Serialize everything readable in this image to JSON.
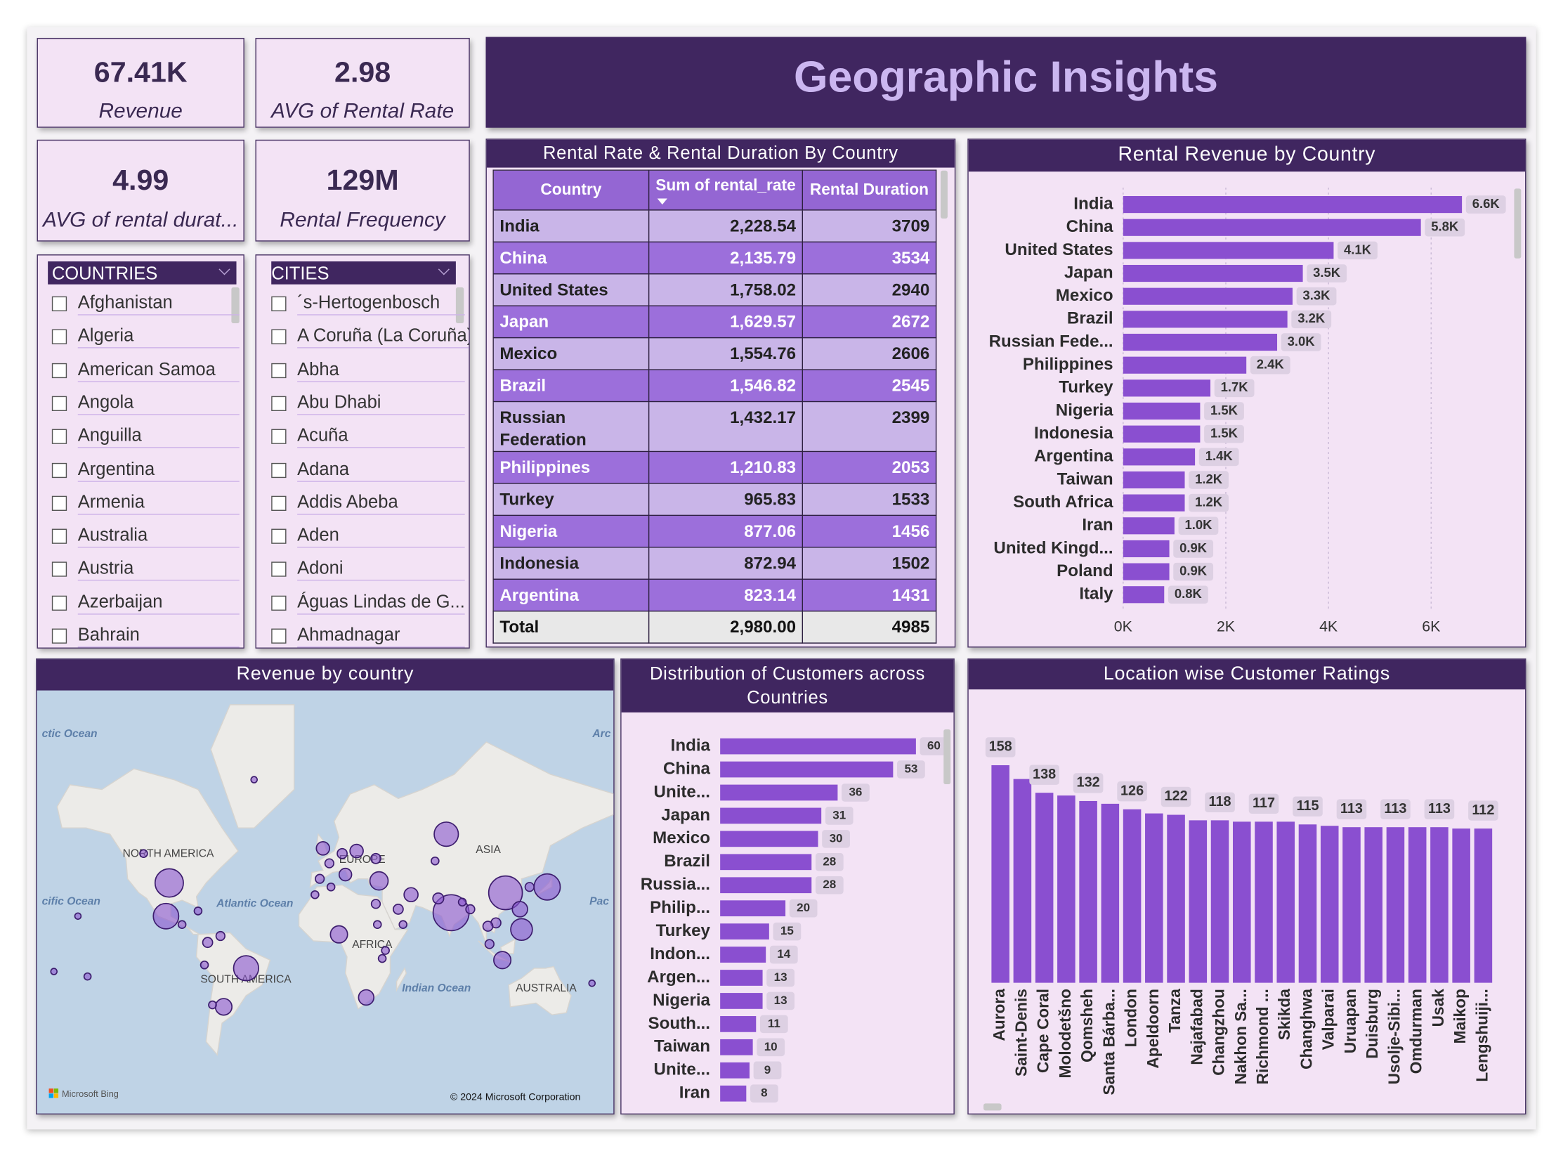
{
  "title": "Geographic Insights",
  "kpis": [
    {
      "value": "67.41K",
      "label": "Revenue"
    },
    {
      "value": "2.98",
      "label": "AVG of Rental Rate"
    },
    {
      "value": "4.99",
      "label": "AVG of rental durat..."
    },
    {
      "value": "129M",
      "label": "Rental Frequency"
    }
  ],
  "slicers": [
    {
      "title": "COUNTRIES",
      "items": [
        "Afghanistan",
        "Algeria",
        "American Samoa",
        "Angola",
        "Anguilla",
        "Argentina",
        "Armenia",
        "Australia",
        "Austria",
        "Azerbaijan",
        "Bahrain"
      ]
    },
    {
      "title": "CITIES",
      "items": [
        "´s-Hertogenbosch",
        "A Coruña (La Coruña)",
        "Abha",
        "Abu Dhabi",
        "Acuña",
        "Adana",
        "Addis Abeba",
        "Aden",
        "Adoni",
        "Águas Lindas de G...",
        "Ahmadnagar"
      ]
    }
  ],
  "table": {
    "title": "Rental Rate & Rental Duration By Country",
    "columns": [
      "Country",
      "Sum of rental_rate",
      "Rental Duration"
    ],
    "rows": [
      [
        "India",
        "2,228.54",
        "3709"
      ],
      [
        "China",
        "2,135.79",
        "3534"
      ],
      [
        "United States",
        "1,758.02",
        "2940"
      ],
      [
        "Japan",
        "1,629.57",
        "2672"
      ],
      [
        "Mexico",
        "1,554.76",
        "2606"
      ],
      [
        "Brazil",
        "1,546.82",
        "2545"
      ],
      [
        "Russian Federation",
        "1,432.17",
        "2399"
      ],
      [
        "Philippines",
        "1,210.83",
        "2053"
      ],
      [
        "Turkey",
        "965.83",
        "1533"
      ],
      [
        "Nigeria",
        "877.06",
        "1456"
      ],
      [
        "Indonesia",
        "872.94",
        "1502"
      ],
      [
        "Argentina",
        "823.14",
        "1431"
      ]
    ],
    "total": [
      "Total",
      "2,980.00",
      "4985"
    ]
  },
  "chart_data": [
    {
      "type": "bar",
      "orientation": "horizontal",
      "title": "Rental Revenue by Country",
      "categories": [
        "India",
        "China",
        "United States",
        "Japan",
        "Mexico",
        "Brazil",
        "Russian Fede...",
        "Philippines",
        "Turkey",
        "Nigeria",
        "Indonesia",
        "Argentina",
        "Taiwan",
        "South Africa",
        "Iran",
        "United Kingd...",
        "Poland",
        "Italy"
      ],
      "values": [
        6600,
        5800,
        4100,
        3500,
        3300,
        3200,
        3000,
        2400,
        1700,
        1500,
        1500,
        1400,
        1200,
        1200,
        1000,
        900,
        900,
        800
      ],
      "value_labels": [
        "6.6K",
        "5.8K",
        "4.1K",
        "3.5K",
        "3.3K",
        "3.2K",
        "3.0K",
        "2.4K",
        "1.7K",
        "1.5K",
        "1.5K",
        "1.4K",
        "1.2K",
        "1.2K",
        "1.0K",
        "0.9K",
        "0.9K",
        "0.8K"
      ],
      "color": "#8a4fd0",
      "xlim": [
        0,
        7500
      ],
      "xticks": [
        {
          "value": 0,
          "label": "0K"
        },
        {
          "value": 2000,
          "label": "2K"
        },
        {
          "value": 4000,
          "label": "4K"
        },
        {
          "value": 6000,
          "label": "6K"
        }
      ],
      "grid": true
    },
    {
      "type": "map",
      "title": "Revenue by country",
      "color": "#8a55cf",
      "x": [
        78,
        112,
        -98,
        138,
        -100,
        -50,
        75,
        122,
        33,
        8,
        110,
        -64,
        121,
        25,
        53,
        -2,
        19,
        12,
        -114,
        -74,
        -66,
        -76,
        -71,
        31,
        45,
        70,
        106,
        127,
        10,
        2,
        -4,
        31,
        68,
        3,
        37,
        35,
        -7,
        101,
        102,
        90,
        48,
        32,
        -155,
        -170,
        -149,
        166,
        -45,
        -90,
        -80,
        85
      ],
      "y": [
        22,
        33,
        38,
        36,
        20,
        -12,
        58,
        12,
        39,
        9,
        -7,
        -34,
        24,
        -29,
        32,
        53,
        52,
        42,
        51,
        4,
        8,
        -10,
        -33,
        27,
        24,
        30,
        16,
        36,
        51,
        47,
        40,
        49,
        48,
        36,
        -1,
        -6,
        32,
        14,
        3,
        24,
        15,
        15,
        20,
        -14,
        -17,
        -21,
        72,
        15,
        23,
        28
      ],
      "sizes": [
        6600,
        5800,
        4100,
        3500,
        3300,
        3200,
        3000,
        2400,
        1700,
        1500,
        1500,
        1400,
        1200,
        1200,
        1000,
        900,
        900,
        800,
        300,
        500,
        400,
        300,
        300,
        400,
        500,
        600,
        500,
        400,
        500,
        400,
        400,
        500,
        300,
        300,
        300,
        300,
        300,
        500,
        400,
        400,
        300,
        300,
        200,
        200,
        250,
        200,
        200,
        300,
        300,
        300
      ],
      "labels": [
        "ctic Ocean",
        "Arc",
        "cific Ocean",
        "Atlantic Ocean",
        "Pac",
        "NORTH AMERICA",
        "ASIA",
        "EUROPE",
        "AFRICA",
        "SOUTH AMERICA",
        "Indian Ocean",
        "AUSTRALIA"
      ],
      "attribution": "Microsoft Bing",
      "copyright": "© 2024 Microsoft Corporation"
    },
    {
      "type": "bar",
      "orientation": "horizontal",
      "title": "Distribution of Customers across Countries",
      "categories": [
        "India",
        "China",
        "Unite...",
        "Japan",
        "Mexico",
        "Brazil",
        "Russia...",
        "Philip...",
        "Turkey",
        "Indon...",
        "Argen...",
        "Nigeria",
        "South...",
        "Taiwan",
        "Unite...",
        "Iran"
      ],
      "values": [
        60,
        53,
        36,
        31,
        30,
        28,
        28,
        20,
        15,
        14,
        13,
        13,
        11,
        10,
        9,
        8
      ],
      "color": "#8a4fd0",
      "xlim": [
        0,
        70
      ]
    },
    {
      "type": "bar",
      "orientation": "vertical",
      "title": "Location wise Customer Ratings",
      "categories": [
        "Aurora",
        "Saint-Denis",
        "Cape Coral",
        "Molodetšno",
        "Qomsheh",
        "Santa Bárba...",
        "London",
        "Apeldoorn",
        "Tanza",
        "Najafabad",
        "Changzhou",
        "Nakhon Sa...",
        "Richmond ...",
        "Skikda",
        "Changhwa",
        "Valparai",
        "Uruapan",
        "Duisburg",
        "Usolje-Sibi...",
        "Omdurman",
        "Usak",
        "Maikop",
        "Lengshuiji..."
      ],
      "values": [
        158,
        148,
        138,
        136,
        132,
        130,
        126,
        123,
        122,
        118,
        118,
        117,
        117,
        117,
        115,
        114,
        113,
        113,
        113,
        113,
        113,
        112,
        112
      ],
      "color": "#8a4fd0",
      "ylim": [
        0,
        175
      ]
    }
  ]
}
